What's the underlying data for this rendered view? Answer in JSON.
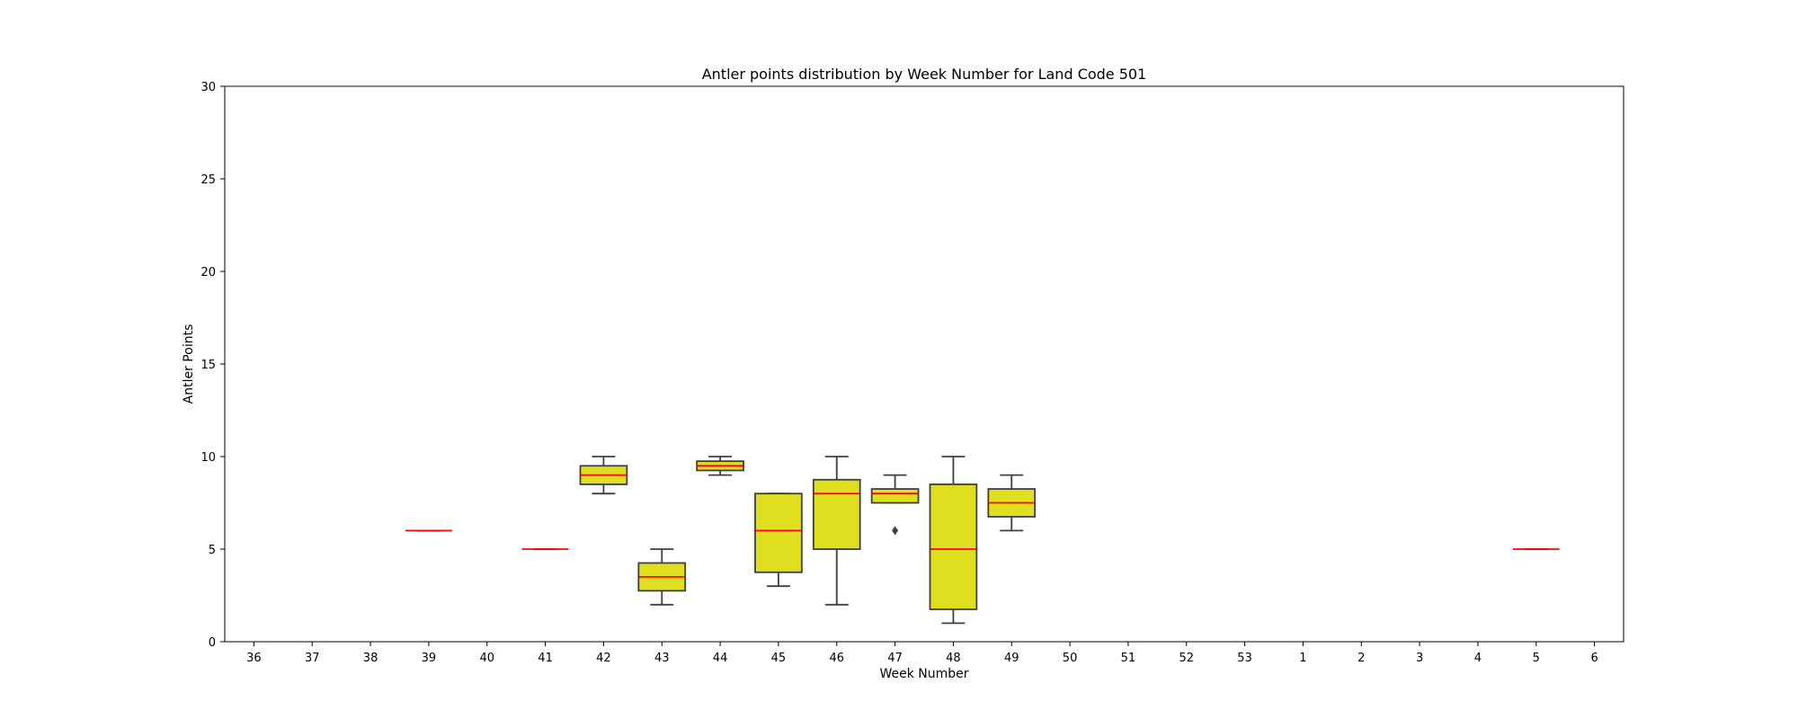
{
  "chart_data": {
    "type": "box",
    "title": "Antler points distribution by Week Number for Land Code 501",
    "xlabel": "Week Number",
    "ylabel": "Antler Points",
    "ylim": [
      0,
      30
    ],
    "yticks": [
      0,
      5,
      10,
      15,
      20,
      25,
      30
    ],
    "categories": [
      "36",
      "37",
      "38",
      "39",
      "40",
      "41",
      "42",
      "43",
      "44",
      "45",
      "46",
      "47",
      "48",
      "49",
      "50",
      "51",
      "52",
      "53",
      "1",
      "2",
      "3",
      "4",
      "5",
      "6"
    ],
    "box_color": "#dfdf1f",
    "edge_color": "#3f3f3f",
    "median_color": "#ff0000",
    "grid": false,
    "boxes": [
      {
        "category": "39",
        "whislo": 6,
        "q1": 6,
        "med": 6,
        "q3": 6,
        "whishi": 6,
        "fliers": []
      },
      {
        "category": "41",
        "whislo": 5,
        "q1": 5,
        "med": 5,
        "q3": 5,
        "whishi": 5,
        "fliers": []
      },
      {
        "category": "42",
        "whislo": 8,
        "q1": 8.5,
        "med": 9,
        "q3": 9.5,
        "whishi": 10,
        "fliers": []
      },
      {
        "category": "43",
        "whislo": 2,
        "q1": 2.75,
        "med": 3.5,
        "q3": 4.25,
        "whishi": 5,
        "fliers": []
      },
      {
        "category": "44",
        "whislo": 9,
        "q1": 9.25,
        "med": 9.5,
        "q3": 9.75,
        "whishi": 10,
        "fliers": []
      },
      {
        "category": "45",
        "whislo": 3,
        "q1": 3.75,
        "med": 6,
        "q3": 8,
        "whishi": 8,
        "fliers": []
      },
      {
        "category": "46",
        "whislo": 2,
        "q1": 5,
        "med": 8,
        "q3": 8.75,
        "whishi": 10,
        "fliers": []
      },
      {
        "category": "47",
        "whislo": 7.5,
        "q1": 7.5,
        "med": 8,
        "q3": 8.25,
        "whishi": 9,
        "fliers": [
          6
        ]
      },
      {
        "category": "48",
        "whislo": 1,
        "q1": 1.75,
        "med": 5,
        "q3": 8.5,
        "whishi": 10,
        "fliers": []
      },
      {
        "category": "49",
        "whislo": 6,
        "q1": 6.75,
        "med": 7.5,
        "q3": 8.25,
        "whishi": 9,
        "fliers": []
      },
      {
        "category": "5",
        "whislo": 5,
        "q1": 5,
        "med": 5,
        "q3": 5,
        "whishi": 5,
        "fliers": []
      }
    ]
  }
}
